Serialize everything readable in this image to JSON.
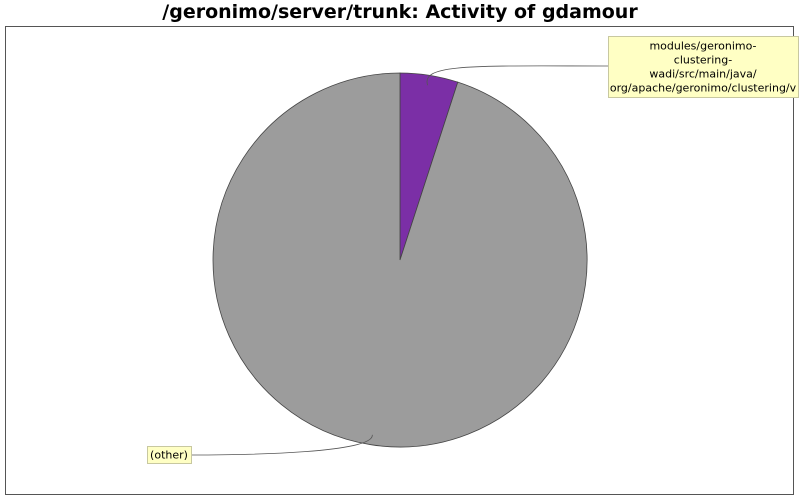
{
  "chart_data": {
    "type": "pie",
    "title": "/geronimo/server/trunk: Activity of gdamour",
    "slices": [
      {
        "label_lines": [
          "modules/geronimo-",
          "clustering-",
          "wadi/src/main/java/",
          "org/apache/geronimo/clustering/v"
        ],
        "value": 5,
        "color": "#7b2fa6"
      },
      {
        "label_lines": [
          "(other)"
        ],
        "value": 95,
        "color": "#9c9c9c"
      }
    ],
    "legend": "none",
    "start_angle_deg": 90,
    "direction": "clockwise"
  }
}
